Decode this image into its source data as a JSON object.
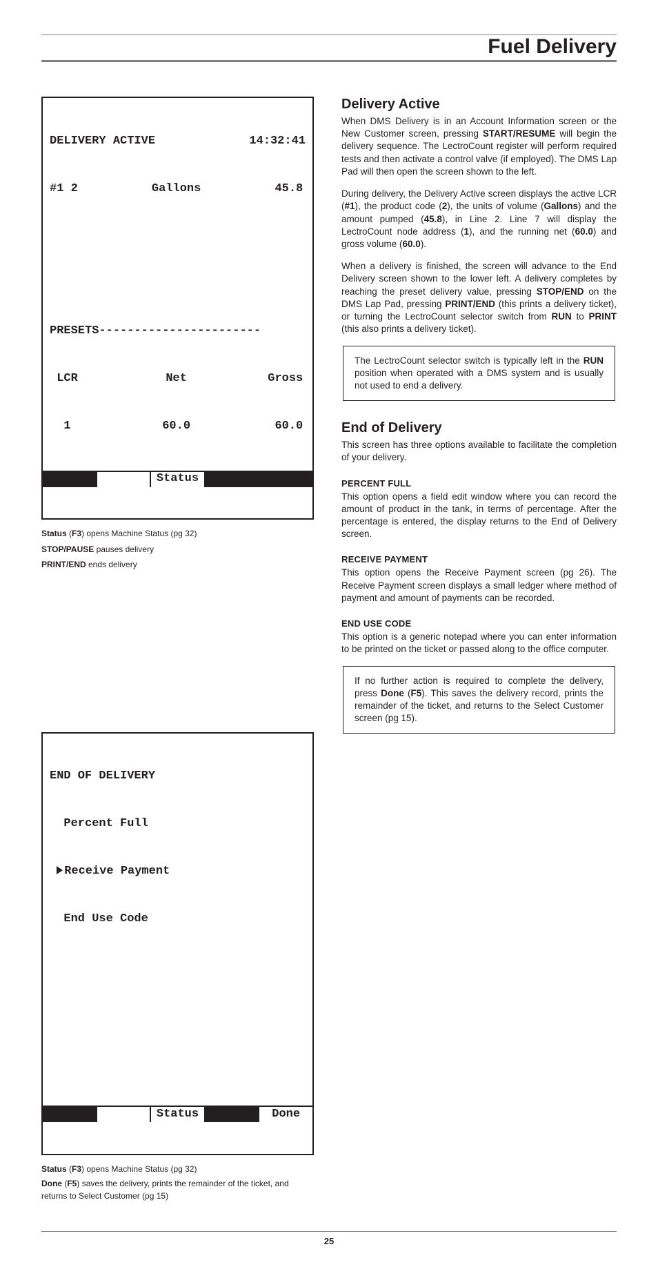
{
  "header": {
    "title": "Fuel Delivery"
  },
  "lcd1": {
    "line1_left": "DELIVERY ACTIVE",
    "line1_right": "14:32:41",
    "line2_left": "#1 2",
    "line2_mid": "Gallons",
    "line2_right": "45.8",
    "presets": "PRESETS-----------------------",
    "hdr_l": " LCR",
    "hdr_m": "Net",
    "hdr_r": "Gross",
    "val_l": "  1",
    "val_m": "60.0",
    "val_r": "60.0",
    "sk3": "Status"
  },
  "cap1a_b1": "Status",
  "cap1a_p1": " (",
  "cap1a_b2": "F3",
  "cap1a_p2": ") opens Machine Status (pg 32)",
  "cap1b_b": "STOP/PAUSE",
  "cap1b_t": " pauses delivery",
  "cap1c_b": "PRINT/END",
  "cap1c_t": " ends delivery",
  "lcd2": {
    "title": "END OF DELIVERY",
    "opt1": "  Percent Full",
    "opt2": "Receive Payment",
    "opt3": "  End Use Code",
    "sk3": "Status",
    "sk5": "Done"
  },
  "cap2a_b1": "Status",
  "cap2a_p1": " (",
  "cap2a_b2": "F3",
  "cap2a_p2": ") opens Machine Status (pg 32)",
  "cap2b_b1": "Done",
  "cap2b_p1": " (",
  "cap2b_b2": "F5",
  "cap2b_p2": ") saves the delivery, prints the remainder of the ticket, and returns to Select Customer (pg 15)",
  "right": {
    "h1": "Delivery Active",
    "p1a": "When DMS Delivery is in an Account Information screen or the New Customer screen, pressing ",
    "p1b": "START/RESUME",
    "p1c": " will begin the delivery sequence. The LectroCount register will perform required tests and then activate a control valve (if employed).  The DMS Lap Pad will then open the screen shown to the left.",
    "p2a": "During delivery, the Delivery Active screen displays the active LCR (",
    "p2b": "#1",
    "p2c": "), the product code (",
    "p2d": "2",
    "p2e": "), the units of volume (",
    "p2f": "Gallons",
    "p2g": ") and the amount pumped (",
    "p2h": "45.8",
    "p2i": "), in Line 2. Line 7 will display the LectroCount node address (",
    "p2j": "1",
    "p2k": "), and the running net (",
    "p2l": "60.0",
    "p2m": ") and gross volume (",
    "p2n": "60.0",
    "p2o": ").",
    "p3a": "When a delivery is finished, the screen will advance to the End Delivery screen shown to the lower left.  A delivery completes by reaching the preset delivery value, pressing ",
    "p3b": "STOP/END",
    "p3c": " on the DMS Lap Pad, pressing ",
    "p3d": "PRINT/END",
    "p3e": " (this prints a delivery ticket), or turning the LectroCount selector switch from ",
    "p3f": "RUN",
    "p3g": " to ",
    "p3h": "PRINT",
    "p3i": " (this also prints a delivery ticket).",
    "note1a": "The LectroCount selector switch is typically left in the ",
    "note1b": "RUN",
    "note1c": " position when operated with a DMS system and is usually not used to end a delivery.",
    "h2": "End of Delivery",
    "p4": "This screen has three options available to facilitate the completion of your delivery.",
    "sh1": "PERCENT FULL",
    "p5": "This option opens a field edit window where you can record the amount of product in the tank, in terms of percentage. After the percentage is entered, the display returns to the End of Delivery screen.",
    "sh2": "RECEIVE PAYMENT",
    "p6": "This option opens the Receive Payment screen (pg 26). The Receive Payment screen displays a small ledger where method of payment and amount of payments can be recorded.",
    "sh3": "END USE CODE",
    "p7": "This option is a generic notepad where you can enter information to be printed on the ticket or passed along to the office computer.",
    "note2a": "If no further action is required to complete the delivery, press ",
    "note2b": "Done",
    "note2c": " (",
    "note2d": "F5",
    "note2e": ").  This saves the delivery record, prints the remainder of the ticket, and returns to the Select Customer screen (pg 15)."
  },
  "footer": {
    "page": "25"
  }
}
